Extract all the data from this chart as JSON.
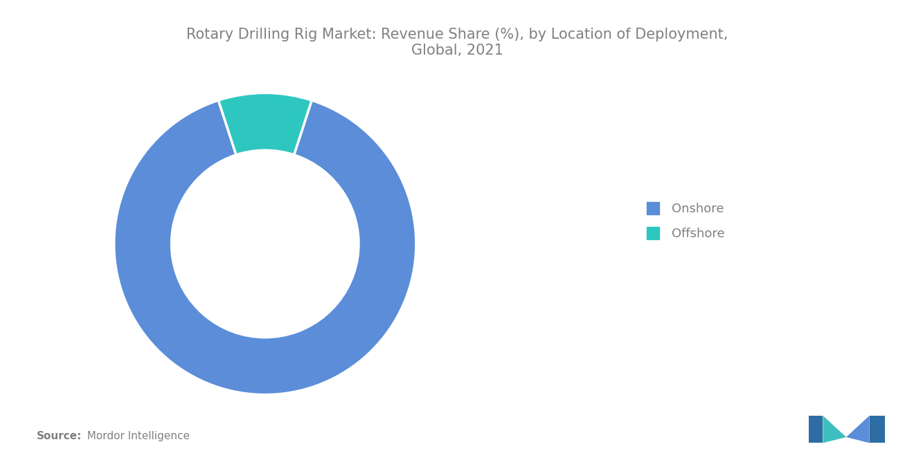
{
  "title": "Rotary Drilling Rig Market: Revenue Share (%), by Location of Deployment,\nGlobal, 2021",
  "title_color": "#808080",
  "title_fontsize": 15,
  "labels": [
    "Onshore",
    "Offshore"
  ],
  "values": [
    90,
    10
  ],
  "colors": [
    "#5b8dd9",
    "#2dc7c0"
  ],
  "donut_width": 0.38,
  "background_color": "#ffffff",
  "source_bold": "Source:",
  "source_normal": "  Mordor Intelligence",
  "source_fontsize": 11,
  "source_color": "#808080",
  "legend_fontsize": 13,
  "legend_color": "#808080"
}
